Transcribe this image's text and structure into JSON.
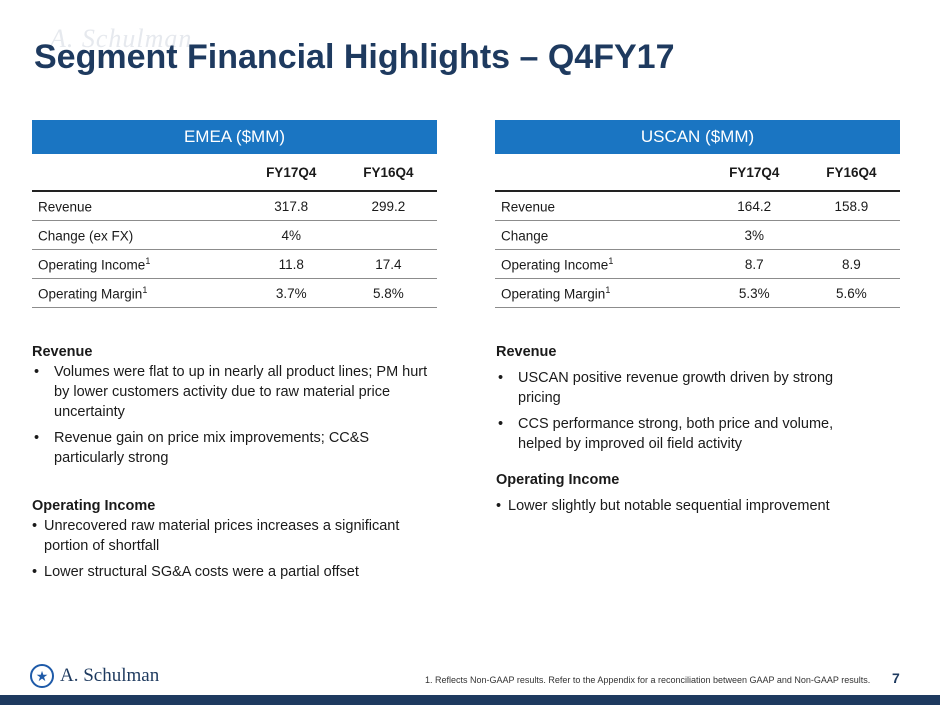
{
  "page": {
    "title": "Segment Financial Highlights – Q4FY17",
    "watermark": "A. Schulman",
    "page_number": "7",
    "footnote": "1. Reflects Non-GAAP results. Refer to the Appendix for a reconciliation between GAAP and Non-GAAP results.",
    "logo_text": "A. Schulman",
    "colors": {
      "title": "#1e3a5f",
      "header_fill": "#1a75c2",
      "footer_bar": "#1e3a5f"
    }
  },
  "emea": {
    "header": "EMEA ($MM)",
    "columns": [
      "FY17Q4",
      "FY16Q4"
    ],
    "rows": [
      {
        "label": "Revenue",
        "sup": "",
        "a": "317.8",
        "b": "299.2"
      },
      {
        "label": "Change (ex FX)",
        "sup": "",
        "a": "4%",
        "b": ""
      },
      {
        "label": "Operating Income",
        "sup": "1",
        "a": "11.8",
        "b": "17.4"
      },
      {
        "label": "Operating Margin",
        "sup": "1",
        "a": "3.7%",
        "b": "5.8%"
      }
    ],
    "revenue_heading": "Revenue",
    "revenue_bullets": [
      "Volumes were flat to up in nearly all product lines; PM hurt by lower customers activity due to raw material price uncertainty",
      "Revenue gain on price mix improvements; CC&S particularly strong"
    ],
    "income_heading": "Operating Income",
    "income_bullets": [
      "Unrecovered raw material prices increases a significant portion of shortfall",
      "Lower structural SG&A costs were a partial offset"
    ]
  },
  "uscan": {
    "header": "USCAN ($MM)",
    "columns": [
      "FY17Q4",
      "FY16Q4"
    ],
    "rows": [
      {
        "label": "Revenue",
        "sup": "",
        "a": "164.2",
        "b": "158.9"
      },
      {
        "label": "Change",
        "sup": "",
        "a": "3%",
        "b": ""
      },
      {
        "label": "Operating Income",
        "sup": "1",
        "a": "8.7",
        "b": "8.9"
      },
      {
        "label": "Operating Margin",
        "sup": "1",
        "a": "5.3%",
        "b": "5.6%"
      }
    ],
    "revenue_heading": "Revenue",
    "revenue_bullets": [
      "USCAN positive revenue growth driven by strong pricing",
      "CCS performance strong, both price and volume, helped by improved oil field activity"
    ],
    "income_heading": "Operating Income",
    "income_bullets": [
      "Lower slightly but notable sequential improvement"
    ]
  }
}
